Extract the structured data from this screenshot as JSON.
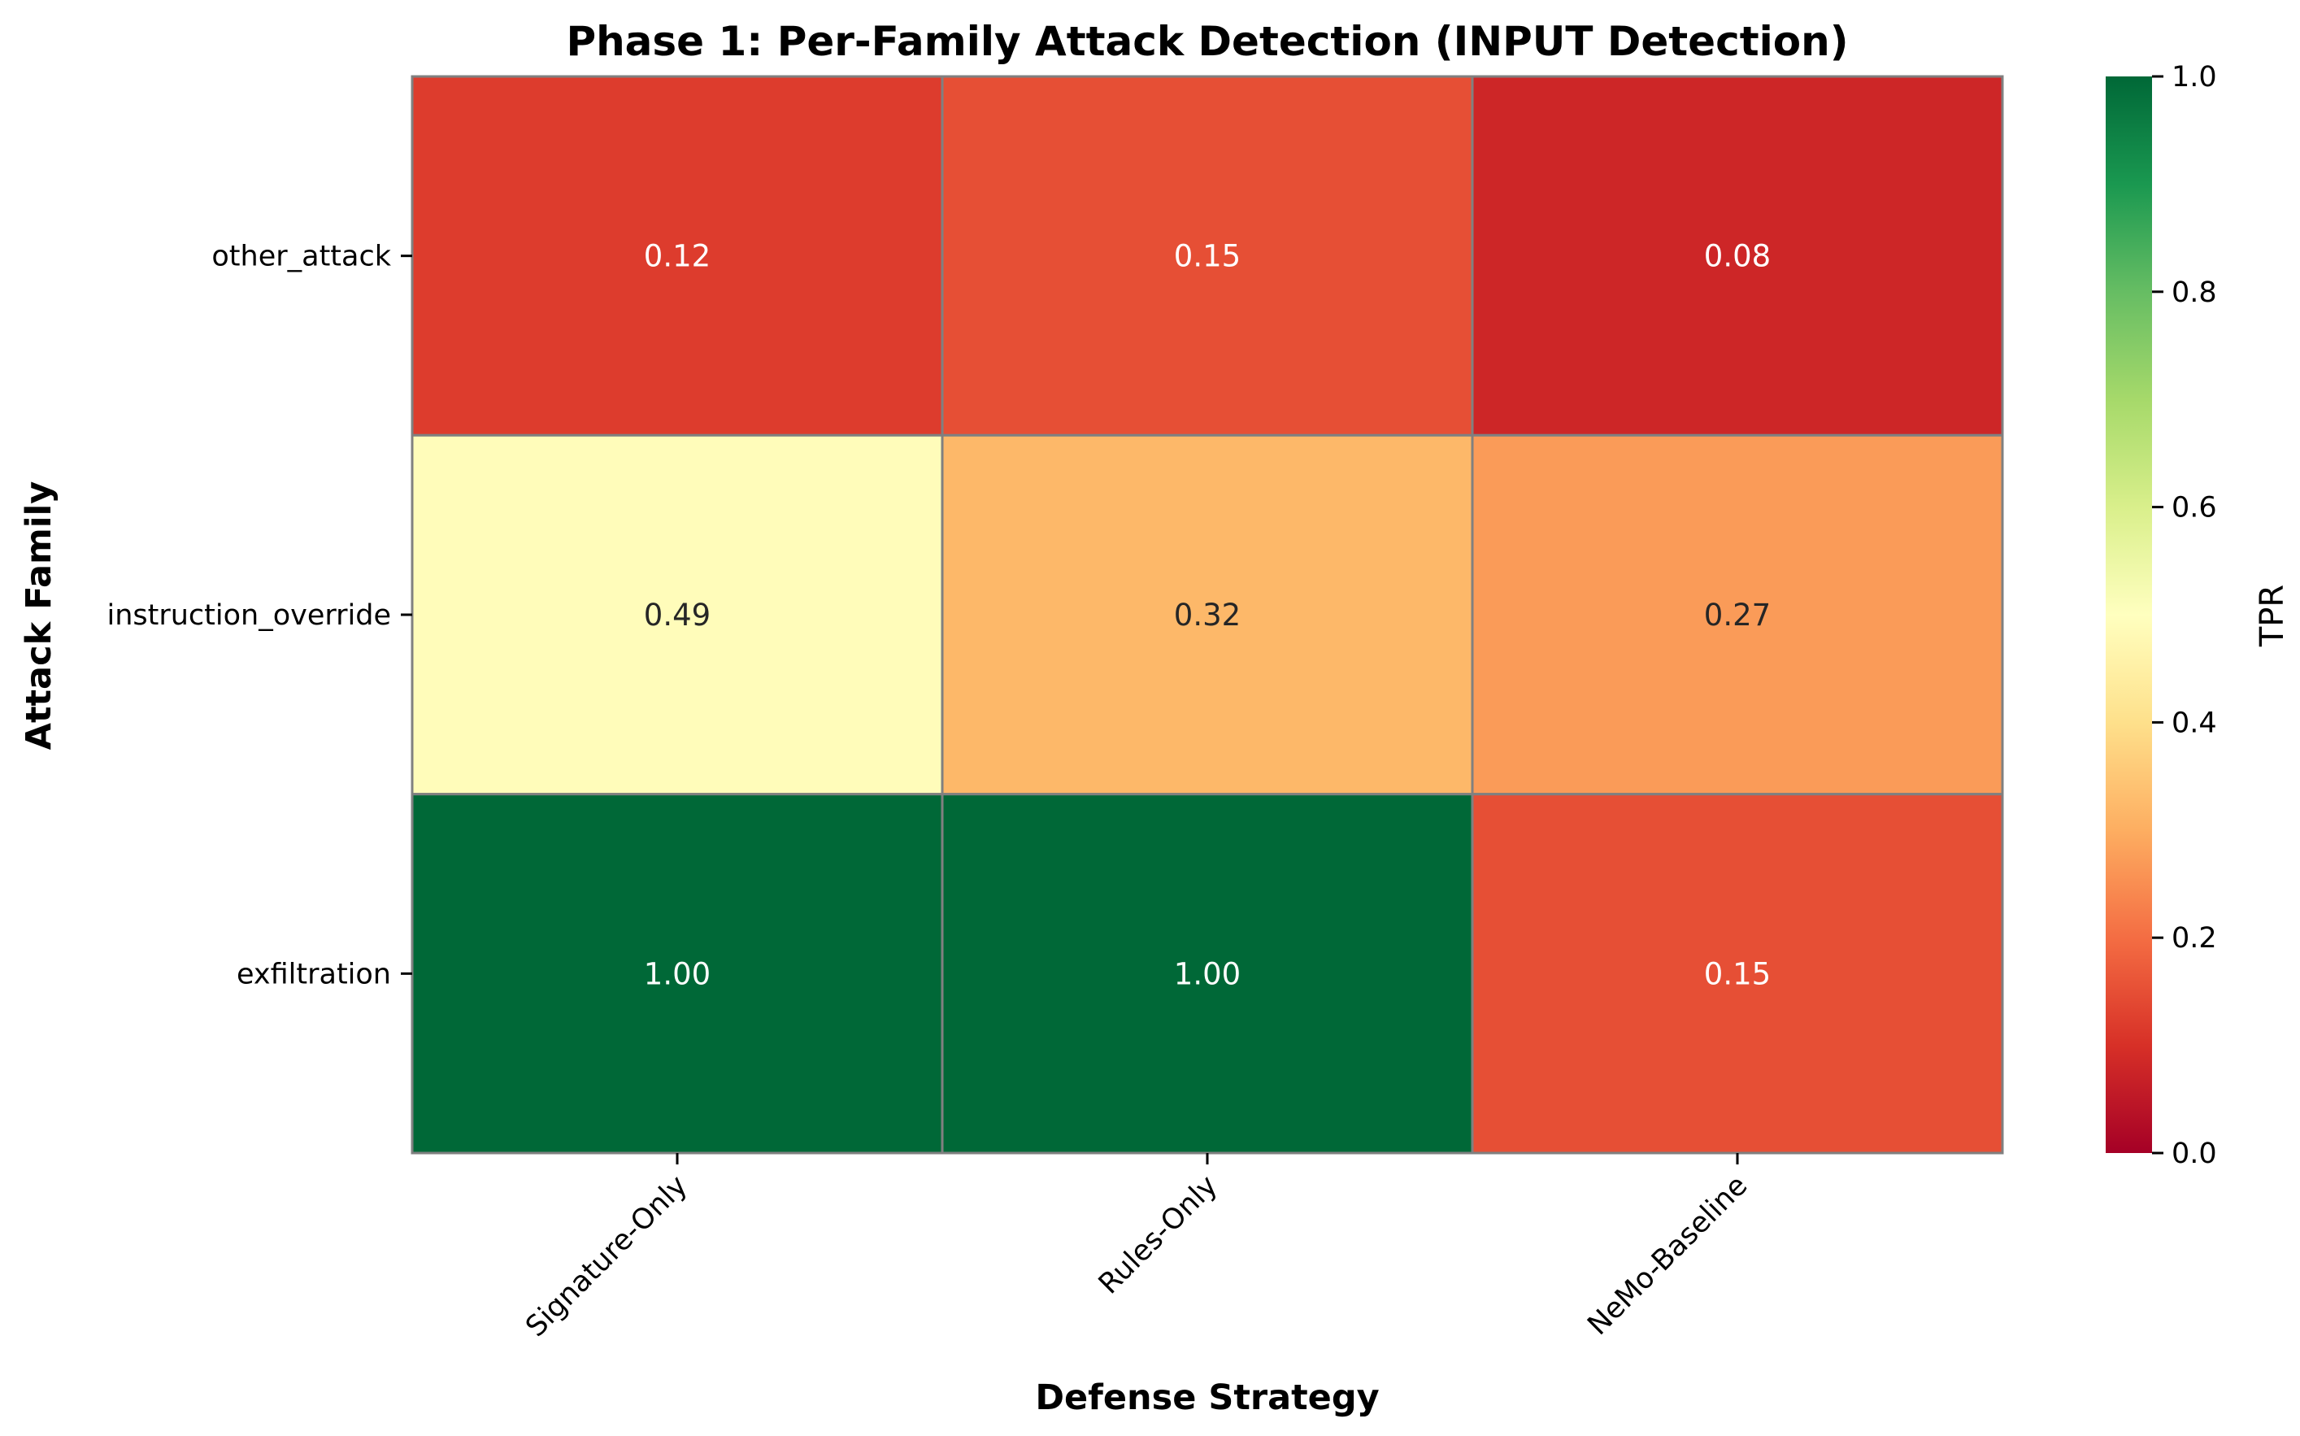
{
  "chart_data": {
    "type": "heatmap",
    "title": "Phase 1: Per-Family Attack Detection (INPUT Detection)",
    "xlabel": "Defense Strategy",
    "ylabel": "Attack Family",
    "x_categories": [
      "Signature-Only",
      "Rules-Only",
      "NeMo-Baseline"
    ],
    "y_categories": [
      "other_attack",
      "instruction_override",
      "exfiltration"
    ],
    "values": [
      [
        0.12,
        0.15,
        0.08
      ],
      [
        0.49,
        0.32,
        0.27
      ],
      [
        1.0,
        1.0,
        0.15
      ]
    ],
    "value_labels": [
      [
        "0.12",
        "0.15",
        "0.08"
      ],
      [
        "0.49",
        "0.32",
        "0.27"
      ],
      [
        "1.00",
        "1.00",
        "0.15"
      ]
    ],
    "colorbar": {
      "label": "TPR",
      "range": [
        0,
        1
      ],
      "ticks": [
        "0.0",
        "0.2",
        "0.4",
        "0.6",
        "0.8",
        "1.0"
      ],
      "colormap": "RdYlGn"
    },
    "cell_border_color": "#808080",
    "grid": false,
    "legend": "none"
  }
}
